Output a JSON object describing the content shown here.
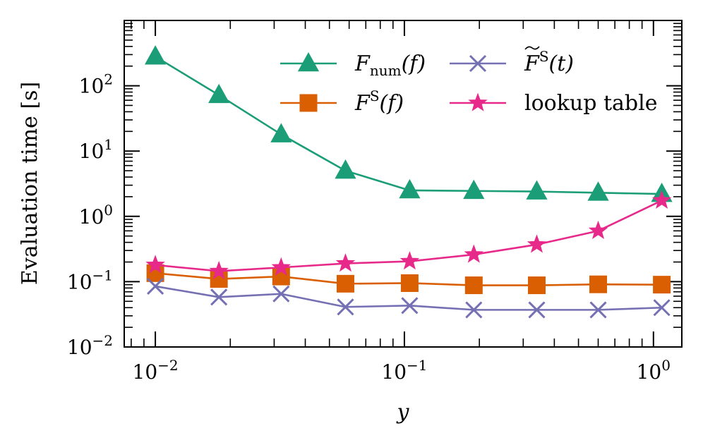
{
  "chart_data": {
    "type": "line",
    "title": "",
    "xlabel": "y",
    "ylabel": "Evaluation time [s]",
    "xscale": "log",
    "yscale": "log",
    "xlim": [
      0.0075,
      1.3
    ],
    "ylim": [
      0.01,
      1000
    ],
    "x_tick_values": [
      0.01,
      0.1,
      1
    ],
    "x_tick_labels": [
      {
        "base": "10",
        "exp": "−2"
      },
      {
        "base": "10",
        "exp": "−1"
      },
      {
        "base": "10",
        "exp": "0"
      }
    ],
    "y_tick_values": [
      0.01,
      0.1,
      1,
      10,
      100
    ],
    "y_tick_labels": [
      {
        "base": "10",
        "exp": "−2"
      },
      {
        "base": "10",
        "exp": "−1"
      },
      {
        "base": "10",
        "exp": "0"
      },
      {
        "base": "10",
        "exp": "1"
      },
      {
        "base": "10",
        "exp": "2"
      }
    ],
    "legend_position": "top-right",
    "x": [
      0.01,
      0.018,
      0.032,
      0.058,
      0.105,
      0.19,
      0.34,
      0.6,
      1.08
    ],
    "series": [
      {
        "name": "F_num(f)",
        "legend": {
          "main": "F",
          "sub": "num",
          "tail": "(f)"
        },
        "marker": "triangle",
        "color": "#1b9e77",
        "values": [
          280,
          72,
          18,
          5.0,
          2.5,
          2.45,
          2.4,
          2.3,
          2.2
        ]
      },
      {
        "name": "F^S(f)",
        "legend": {
          "main": "F",
          "sup": "S",
          "tail": "(f)"
        },
        "marker": "square",
        "color": "#d95f02",
        "values": [
          0.135,
          0.11,
          0.12,
          0.093,
          0.095,
          0.088,
          0.088,
          0.091,
          0.09
        ]
      },
      {
        "name": "F~^S(t)",
        "legend": {
          "main": "F",
          "sup": "S",
          "tail": "(t)",
          "tilde": true
        },
        "marker": "x",
        "color": "#7570b3",
        "values": [
          0.085,
          0.058,
          0.065,
          0.041,
          0.043,
          0.037,
          0.037,
          0.037,
          0.04
        ]
      },
      {
        "name": "lookup table",
        "legend": {
          "main": "lookup table"
        },
        "marker": "star",
        "color": "#e7298a",
        "values": [
          0.18,
          0.145,
          0.165,
          0.19,
          0.205,
          0.26,
          0.37,
          0.6,
          1.75
        ]
      }
    ]
  }
}
